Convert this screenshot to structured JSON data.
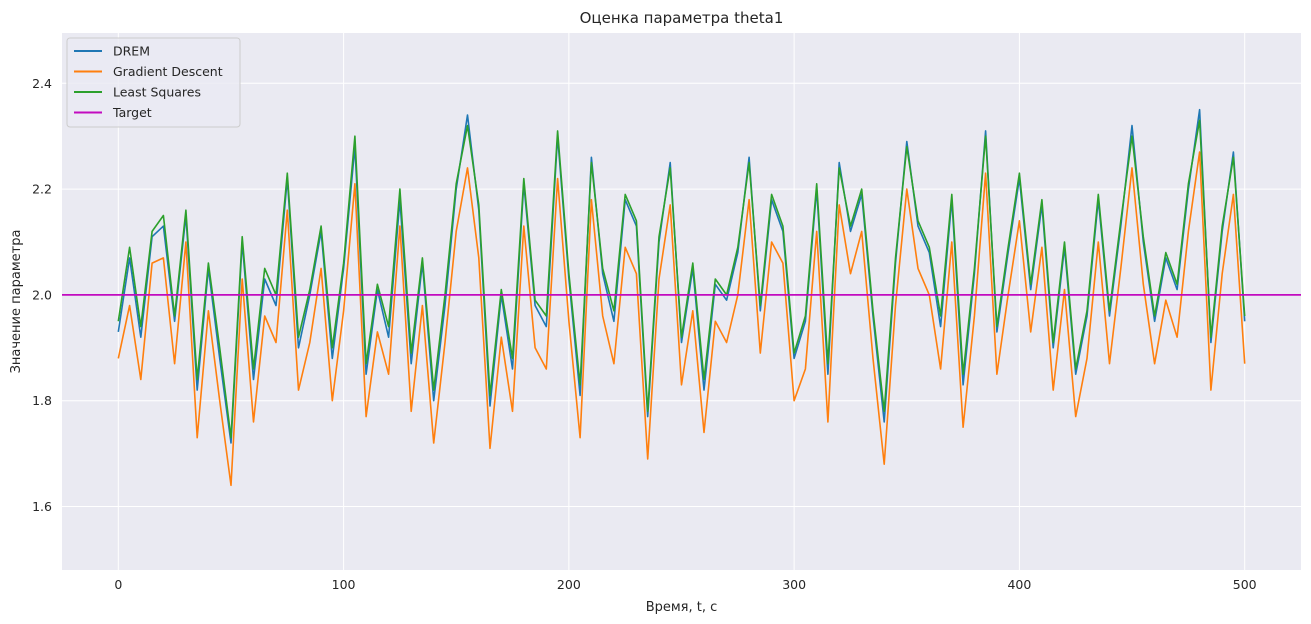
{
  "chart_data": {
    "type": "line",
    "title": "Оценка параметра theta1",
    "xlabel": "Время, t, с",
    "ylabel": "Значение параметра",
    "xlim": [
      -25,
      525
    ],
    "ylim": [
      1.48,
      2.495
    ],
    "xticks": [
      0,
      100,
      200,
      300,
      400,
      500
    ],
    "yticks": [
      1.6,
      1.8,
      2.0,
      2.2,
      2.4
    ],
    "ytick_labels": [
      "1.6",
      "1.8",
      "2.0",
      "2.2",
      "2.4"
    ],
    "grid": true,
    "legend_position": "upper-left",
    "target_value": 2.0,
    "series": [
      {
        "name": "DREM",
        "color": "#1f77b4",
        "x_start": 0,
        "x_step": 5,
        "values": [
          1.93,
          2.07,
          1.92,
          2.11,
          2.13,
          1.95,
          2.15,
          1.82,
          2.05,
          1.88,
          1.72,
          2.1,
          1.84,
          2.03,
          1.98,
          2.22,
          1.9,
          2.0,
          2.12,
          1.88,
          2.05,
          2.28,
          1.85,
          2.01,
          1.92,
          2.18,
          1.87,
          2.06,
          1.8,
          1.98,
          2.2,
          2.34,
          2.16,
          1.79,
          2.0,
          1.86,
          2.21,
          1.98,
          1.94,
          2.3,
          2.03,
          1.81,
          2.26,
          2.04,
          1.95,
          2.18,
          2.13,
          1.77,
          2.1,
          2.25,
          1.91,
          2.05,
          1.82,
          2.02,
          1.99,
          2.08,
          2.26,
          1.97,
          2.18,
          2.12,
          1.88,
          1.95,
          2.2,
          1.85,
          2.25,
          2.12,
          2.19,
          1.96,
          1.76,
          2.06,
          2.29,
          2.13,
          2.08,
          1.94,
          2.18,
          1.83,
          2.04,
          2.31,
          1.93,
          2.08,
          2.22,
          2.01,
          2.17,
          1.9,
          2.09,
          1.85,
          1.96,
          2.18,
          1.96,
          2.13,
          2.32,
          2.1,
          1.95,
          2.07,
          2.01,
          2.2,
          2.35,
          1.91,
          2.12,
          2.27,
          1.95
        ]
      },
      {
        "name": "Gradient Descent",
        "color": "#ff7f0e",
        "x_start": 0,
        "x_step": 5,
        "values": [
          1.88,
          1.98,
          1.84,
          2.06,
          2.07,
          1.87,
          2.1,
          1.73,
          1.97,
          1.8,
          1.64,
          2.03,
          1.76,
          1.96,
          1.91,
          2.16,
          1.82,
          1.91,
          2.05,
          1.8,
          1.97,
          2.21,
          1.77,
          1.93,
          1.85,
          2.13,
          1.78,
          1.98,
          1.72,
          1.91,
          2.12,
          2.24,
          2.07,
          1.71,
          1.92,
          1.78,
          2.13,
          1.9,
          1.86,
          2.22,
          1.95,
          1.73,
          2.18,
          1.96,
          1.87,
          2.09,
          2.04,
          1.69,
          2.03,
          2.17,
          1.83,
          1.97,
          1.74,
          1.95,
          1.91,
          2.0,
          2.18,
          1.89,
          2.1,
          2.06,
          1.8,
          1.86,
          2.12,
          1.76,
          2.17,
          2.04,
          2.12,
          1.88,
          1.68,
          1.98,
          2.2,
          2.05,
          2.0,
          1.86,
          2.1,
          1.75,
          1.96,
          2.23,
          1.85,
          2.0,
          2.14,
          1.93,
          2.09,
          1.82,
          2.01,
          1.77,
          1.88,
          2.1,
          1.87,
          2.05,
          2.24,
          2.02,
          1.87,
          1.99,
          1.92,
          2.12,
          2.27,
          1.82,
          2.04,
          2.19,
          1.87
        ]
      },
      {
        "name": "Least Squares",
        "color": "#2ca02c",
        "x_start": 0,
        "x_step": 5,
        "values": [
          1.95,
          2.09,
          1.94,
          2.12,
          2.15,
          1.96,
          2.16,
          1.84,
          2.06,
          1.9,
          1.73,
          2.11,
          1.86,
          2.05,
          2.0,
          2.23,
          1.92,
          2.01,
          2.13,
          1.9,
          2.06,
          2.3,
          1.87,
          2.02,
          1.94,
          2.2,
          1.89,
          2.07,
          1.82,
          2.0,
          2.21,
          2.32,
          2.17,
          1.81,
          2.01,
          1.88,
          2.22,
          1.99,
          1.96,
          2.31,
          2.04,
          1.83,
          2.25,
          2.05,
          1.97,
          2.19,
          2.14,
          1.78,
          2.11,
          2.24,
          1.92,
          2.06,
          1.84,
          2.03,
          2.0,
          2.09,
          2.25,
          1.98,
          2.19,
          2.13,
          1.89,
          1.96,
          2.21,
          1.87,
          2.24,
          2.13,
          2.2,
          1.97,
          1.78,
          2.07,
          2.28,
          2.14,
          2.09,
          1.96,
          2.19,
          1.85,
          2.05,
          2.3,
          1.94,
          2.09,
          2.23,
          2.02,
          2.18,
          1.91,
          2.1,
          1.86,
          1.97,
          2.19,
          1.97,
          2.14,
          2.3,
          2.11,
          1.96,
          2.08,
          2.02,
          2.21,
          2.33,
          1.92,
          2.13,
          2.26,
          1.96
        ]
      },
      {
        "name": "Target",
        "color": "#c20bbf",
        "x_start": 0,
        "x_step": 500,
        "values": [
          2.0,
          2.0
        ]
      }
    ]
  }
}
